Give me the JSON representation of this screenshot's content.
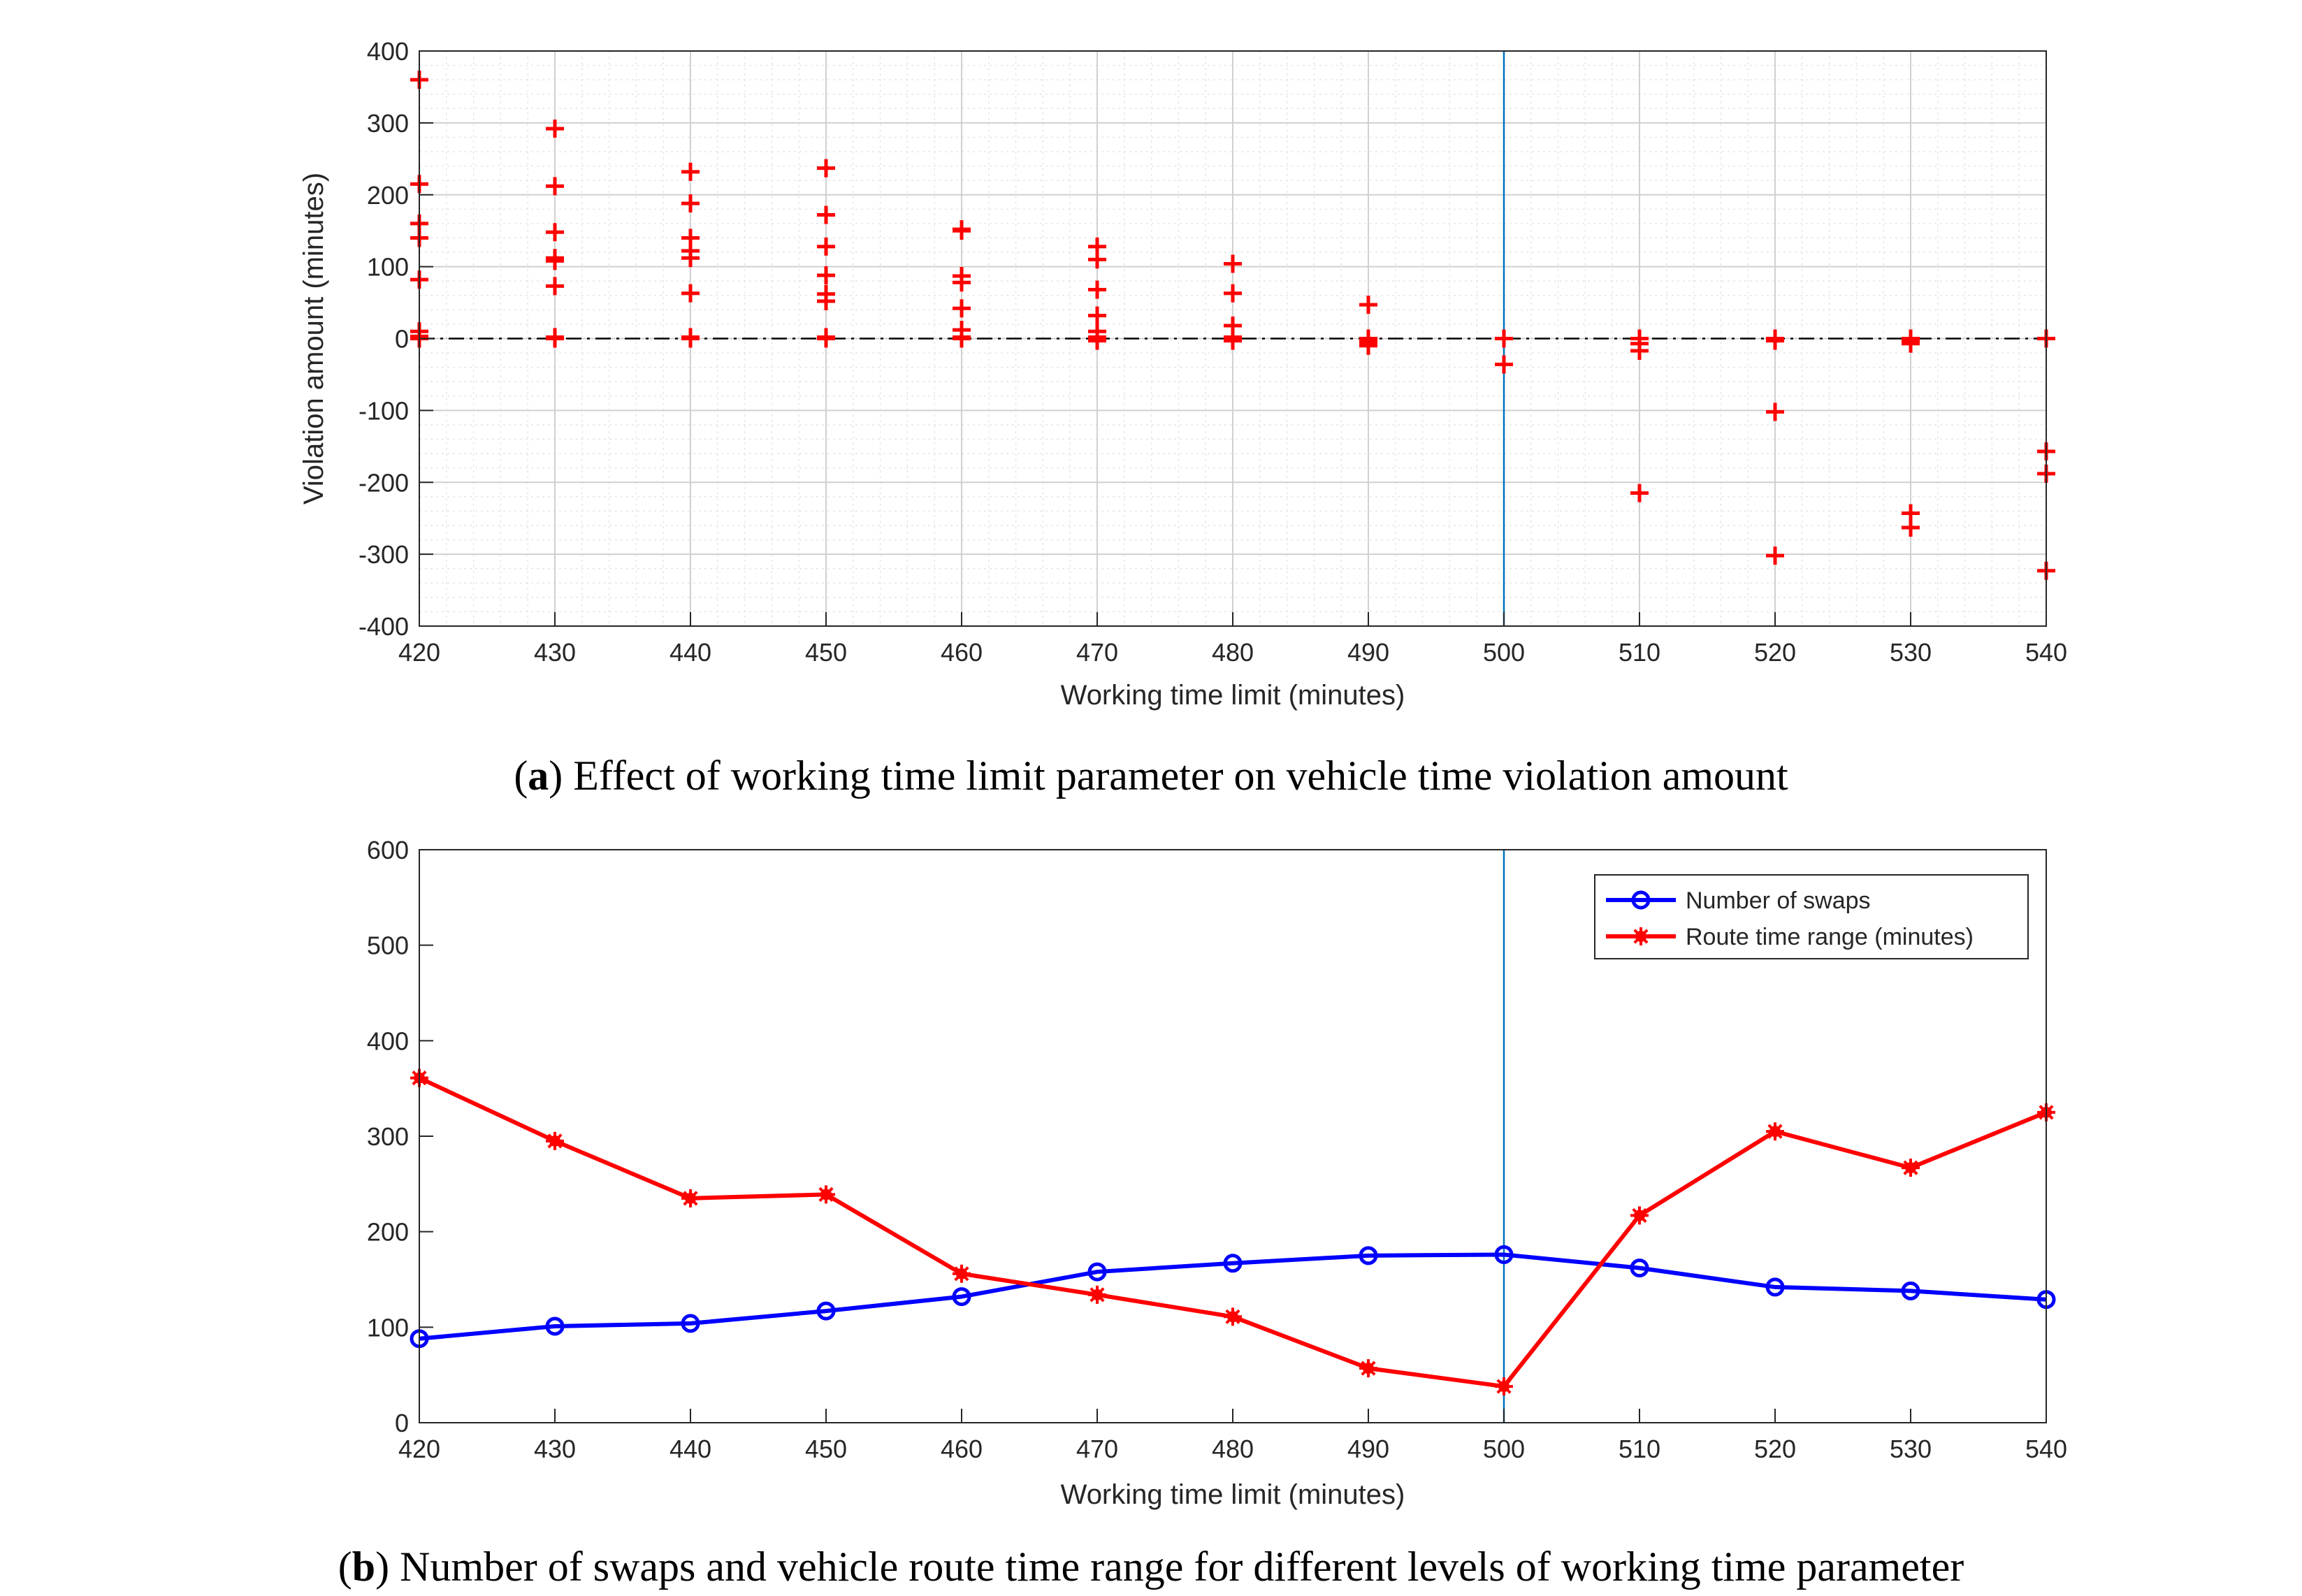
{
  "chart_data": [
    {
      "type": "scatter",
      "panel": "a",
      "caption_prefix": "(",
      "caption_letter": "a",
      "caption_text": ") Effect of working time limit parameter on vehicle time violation amount",
      "xlabel": "Working time limit (minutes)",
      "ylabel": "Violation amount (minutes)",
      "xlim": [
        420,
        540
      ],
      "ylim": [
        -400,
        400
      ],
      "xticks": [
        420,
        430,
        440,
        450,
        460,
        470,
        480,
        490,
        500,
        510,
        520,
        530,
        540
      ],
      "yticks": [
        -400,
        -300,
        -200,
        -100,
        0,
        100,
        200,
        300,
        400
      ],
      "grid": true,
      "minor_grid": true,
      "reference_vline": 500,
      "reference_hline": 0,
      "marker": "+",
      "color": "#ff0000",
      "vline_color": "#0072bd",
      "points": [
        [
          420,
          360
        ],
        [
          420,
          215
        ],
        [
          420,
          160
        ],
        [
          420,
          140
        ],
        [
          420,
          82
        ],
        [
          420,
          10
        ],
        [
          420,
          3
        ],
        [
          420,
          0
        ],
        [
          430,
          292
        ],
        [
          430,
          212
        ],
        [
          430,
          148
        ],
        [
          430,
          112
        ],
        [
          430,
          108
        ],
        [
          430,
          73
        ],
        [
          430,
          2
        ],
        [
          430,
          0
        ],
        [
          440,
          232
        ],
        [
          440,
          188
        ],
        [
          440,
          140
        ],
        [
          440,
          122
        ],
        [
          440,
          112
        ],
        [
          440,
          63
        ],
        [
          440,
          2
        ],
        [
          440,
          0
        ],
        [
          450,
          237
        ],
        [
          450,
          172
        ],
        [
          450,
          128
        ],
        [
          450,
          88
        ],
        [
          450,
          62
        ],
        [
          450,
          52
        ],
        [
          450,
          2
        ],
        [
          450,
          0
        ],
        [
          460,
          152
        ],
        [
          460,
          150
        ],
        [
          460,
          87
        ],
        [
          460,
          78
        ],
        [
          460,
          42
        ],
        [
          460,
          12
        ],
        [
          460,
          2
        ],
        [
          460,
          0
        ],
        [
          470,
          128
        ],
        [
          470,
          110
        ],
        [
          470,
          68
        ],
        [
          470,
          32
        ],
        [
          470,
          10
        ],
        [
          470,
          2
        ],
        [
          470,
          0
        ],
        [
          470,
          -3
        ],
        [
          480,
          104
        ],
        [
          480,
          63
        ],
        [
          480,
          18
        ],
        [
          480,
          2
        ],
        [
          480,
          0
        ],
        [
          480,
          -3
        ],
        [
          490,
          47
        ],
        [
          490,
          0
        ],
        [
          490,
          -3
        ],
        [
          490,
          -7
        ],
        [
          490,
          -10
        ],
        [
          500,
          0
        ],
        [
          500,
          -36
        ],
        [
          510,
          0
        ],
        [
          510,
          -7
        ],
        [
          510,
          -17
        ],
        [
          510,
          -215
        ],
        [
          520,
          0
        ],
        [
          520,
          -3
        ],
        [
          520,
          -102
        ],
        [
          520,
          -302
        ],
        [
          530,
          0
        ],
        [
          530,
          -3
        ],
        [
          530,
          -7
        ],
        [
          530,
          -243
        ],
        [
          530,
          -263
        ],
        [
          540,
          0
        ],
        [
          540,
          -157
        ],
        [
          540,
          -188
        ],
        [
          540,
          -323
        ]
      ]
    },
    {
      "type": "line",
      "panel": "b",
      "caption_prefix": "(",
      "caption_letter": "b",
      "caption_text": ") Number of swaps and vehicle route time range for different levels of working time parameter",
      "xlabel": "Working time limit (minutes)",
      "ylabel": "",
      "xlim": [
        420,
        540
      ],
      "ylim": [
        0,
        600
      ],
      "xticks": [
        420,
        430,
        440,
        450,
        460,
        470,
        480,
        490,
        500,
        510,
        520,
        530,
        540
      ],
      "yticks": [
        0,
        100,
        200,
        300,
        400,
        500,
        600
      ],
      "grid": false,
      "reference_vline": 500,
      "vline_color": "#0072bd",
      "legend_position": "top-right",
      "x": [
        420,
        430,
        440,
        450,
        460,
        470,
        480,
        490,
        500,
        510,
        520,
        530,
        540
      ],
      "series": [
        {
          "name": "Number of swaps",
          "color": "#0000ff",
          "marker": "circle",
          "values": [
            88,
            101,
            104,
            117,
            132,
            158,
            167,
            175,
            176,
            162,
            142,
            138,
            129
          ]
        },
        {
          "name": "Route time range (minutes)",
          "color": "#ff0000",
          "marker": "star",
          "values": [
            361,
            295,
            235,
            239,
            156,
            134,
            111,
            57,
            38,
            217,
            305,
            267,
            325
          ]
        }
      ]
    }
  ]
}
